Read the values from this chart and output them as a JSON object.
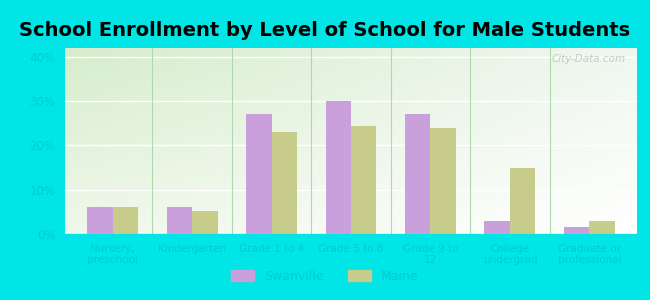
{
  "title": "School Enrollment by Level of School for Male Students",
  "categories": [
    "Nursery,\npreschool",
    "Kindergarten",
    "Grade 1 to 4",
    "Grade 5 to 8",
    "Grade 9 to\n12",
    "College\nundergrad",
    "Graduate or\nprofessional"
  ],
  "swanville": [
    6.0,
    6.2,
    27.0,
    30.0,
    27.0,
    3.0,
    1.5
  ],
  "maine": [
    6.0,
    5.2,
    23.0,
    24.5,
    24.0,
    15.0,
    3.0
  ],
  "swanville_color": "#c9a0dc",
  "maine_color": "#c8cc8a",
  "outer_bg": "#00e5e5",
  "plot_bg_topleft": "#d4edcc",
  "plot_bg_bottomright": "#f0f8ee",
  "ylim": [
    0,
    42
  ],
  "yticks": [
    0,
    10,
    20,
    30,
    40
  ],
  "ytick_labels": [
    "0%",
    "10%",
    "20%",
    "30%",
    "40%"
  ],
  "title_fontsize": 14,
  "tick_color": "#00cccc",
  "legend_labels": [
    "Swanville",
    "Maine"
  ],
  "bar_width": 0.32,
  "watermark": "City-Data.com",
  "watermark_color": "#c0c0c0"
}
